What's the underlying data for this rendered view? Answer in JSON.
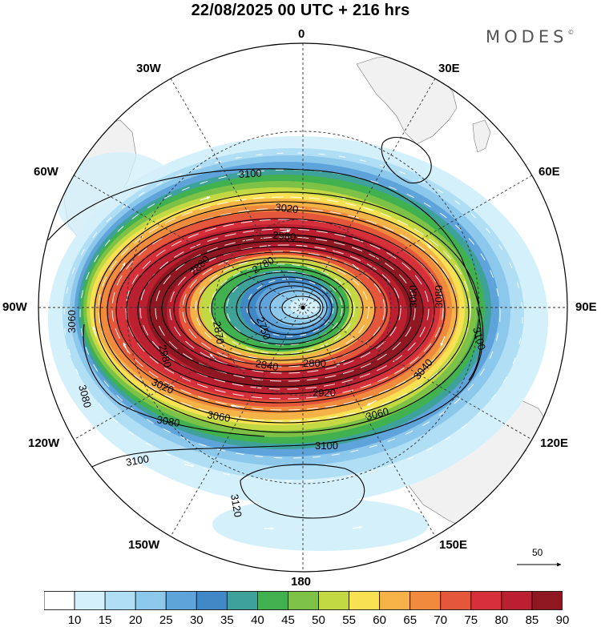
{
  "header": {
    "title": "22/08/2025  00 UTC  + 216 hrs",
    "logo": "MODES",
    "logo_mark": "©"
  },
  "map": {
    "projection": "south-polar-stereographic",
    "longitude_labels": [
      {
        "text": "0"
      },
      {
        "text": "30E"
      },
      {
        "text": "60E"
      },
      {
        "text": "90E"
      },
      {
        "text": "120E"
      },
      {
        "text": "150E"
      },
      {
        "text": "180"
      },
      {
        "text": "150W"
      },
      {
        "text": "120W"
      },
      {
        "text": "90W"
      },
      {
        "text": "60W"
      },
      {
        "text": "30W"
      }
    ],
    "contour_labels": [
      "3100",
      "3020",
      "2980",
      "2880",
      "2780",
      "2870",
      "2750",
      "3060",
      "2980",
      "3080",
      "3080",
      "3100",
      "3000",
      "3040",
      "2800",
      "2840",
      "2920",
      "3020",
      "3060",
      "3060",
      "3080",
      "3100",
      "3120",
      "3100"
    ],
    "vector_reference": {
      "value": "50"
    },
    "colors": {
      "land": "#f1f1f1",
      "contour": "#000000",
      "vectors": "#ffffff"
    }
  },
  "colorbar": {
    "ticks": [
      "10",
      "15",
      "20",
      "25",
      "30",
      "35",
      "40",
      "45",
      "50",
      "55",
      "60",
      "65",
      "70",
      "75",
      "80",
      "85",
      "90"
    ],
    "colors": [
      "#ffffff",
      "#d4f0fb",
      "#b0dff5",
      "#8cc7ec",
      "#5ea4da",
      "#4088c6",
      "#3ea29b",
      "#41b14f",
      "#7dc246",
      "#c3d944",
      "#f8e253",
      "#f5b246",
      "#f08a3c",
      "#e5573a",
      "#d6303a",
      "#bb2030",
      "#8f1721"
    ]
  }
}
